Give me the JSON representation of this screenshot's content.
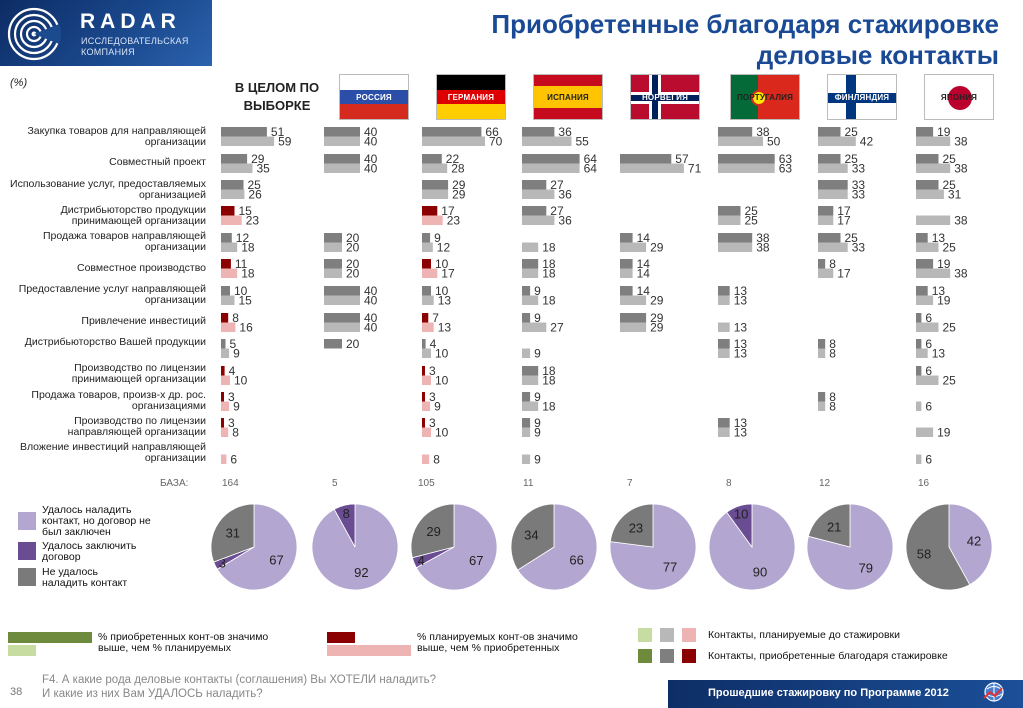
{
  "header": {
    "logo_name": "RADAR",
    "logo_sub1": "ИССЛЕДОВАТЕЛЬСКАЯ",
    "logo_sub2": "КОМПАНИЯ",
    "title_line1": "Приобретенные благодаря стажировке",
    "title_line2": "деловые контакты"
  },
  "unit_label": "(%)",
  "overall_label_line1": "В ЦЕЛОМ ПО",
  "overall_label_line2": "ВЫБОРКЕ",
  "countries": [
    {
      "label": "РОССИЯ",
      "flag": "russia"
    },
    {
      "label": "ГЕРМАНИЯ",
      "flag": "germany"
    },
    {
      "label": "ИСПАНИЯ",
      "flag": "spain"
    },
    {
      "label": "НОРВЕГИЯ",
      "flag": "norway"
    },
    {
      "label": "ПОРТУГАЛИЯ",
      "flag": "portugal"
    },
    {
      "label": "ФИНЛЯНДИЯ",
      "flag": "finland"
    },
    {
      "label": "ЯПОНИЯ",
      "flag": "japan"
    }
  ],
  "colors": {
    "acquired_default": "#7f7f7f",
    "planned_default": "#b8b8b8",
    "acquired_sig_low": "#8b0000",
    "planned_sig_low": "#eeb4b4",
    "acquired_sig_high": "#6e8b3d",
    "planned_sig_high": "#c6dca0",
    "pie_established": "#b3a6d0",
    "pie_agreement": "#6a4c93",
    "pie_failed": "#7a7a7a",
    "title": "#1a4a96"
  },
  "base_label": "БАЗА:",
  "chart_data": {
    "type": "bar",
    "orientation": "horizontal",
    "groups": [
      "В ЦЕЛОМ ПО ВЫБОРКЕ",
      "РОССИЯ",
      "ГЕРМАНИЯ",
      "ИСПАНИЯ",
      "НОРВЕГИЯ",
      "ПОРТУГАЛИЯ",
      "ФИНЛЯНДИЯ",
      "ЯПОНИЯ"
    ],
    "base": [
      164,
      5,
      105,
      11,
      7,
      8,
      12,
      16
    ],
    "categories": [
      "Закупка товаров для направляющей организации",
      "Совместный проект",
      "Использование услуг, предоставляемых организацией",
      "Дистрибьюторство продукции принимающей организации",
      "Продажа товаров направляющей организации",
      "Совместное производство",
      "Предоставление услуг направляющей организации",
      "Привлечение инвестиций",
      "Дистрибьюторство Вашей продукции",
      "Производство по лицензии принимающей организации",
      "Продажа товаров, произв-х др. рос. организациями",
      "Производство по лицензии направляющей организации",
      "Вложение инвестиций направляющей организации"
    ],
    "series": [
      {
        "name": "Контакты, приобретенные благодаря стажировке",
        "values": [
          [
            51,
            29,
            25,
            15,
            12,
            11,
            10,
            8,
            5,
            4,
            3,
            3,
            null
          ],
          [
            40,
            40,
            null,
            null,
            20,
            20,
            40,
            40,
            20,
            null,
            null,
            null,
            null
          ],
          [
            66,
            22,
            29,
            17,
            9,
            10,
            10,
            7,
            4,
            3,
            3,
            3,
            null
          ],
          [
            36,
            64,
            27,
            27,
            null,
            18,
            9,
            9,
            null,
            18,
            9,
            9,
            null
          ],
          [
            null,
            57,
            null,
            null,
            14,
            14,
            14,
            29,
            null,
            null,
            null,
            null,
            null
          ],
          [
            38,
            63,
            null,
            25,
            38,
            null,
            13,
            null,
            13,
            null,
            null,
            13,
            null
          ],
          [
            25,
            25,
            33,
            17,
            25,
            8,
            null,
            null,
            8,
            null,
            8,
            null,
            null
          ],
          [
            19,
            25,
            25,
            null,
            13,
            19,
            13,
            6,
            6,
            6,
            null,
            null,
            null
          ]
        ]
      },
      {
        "name": "Контакты, планируемые до стажировки",
        "values": [
          [
            59,
            35,
            26,
            23,
            18,
            18,
            15,
            16,
            9,
            10,
            9,
            8,
            6
          ],
          [
            40,
            40,
            null,
            null,
            20,
            20,
            40,
            40,
            null,
            null,
            null,
            null,
            null
          ],
          [
            70,
            28,
            29,
            23,
            12,
            17,
            13,
            13,
            10,
            10,
            9,
            10,
            8
          ],
          [
            55,
            64,
            36,
            36,
            18,
            18,
            18,
            27,
            9,
            18,
            18,
            9,
            9
          ],
          [
            null,
            71,
            null,
            null,
            29,
            14,
            29,
            29,
            null,
            null,
            null,
            null,
            null
          ],
          [
            50,
            63,
            null,
            25,
            38,
            null,
            13,
            13,
            13,
            null,
            null,
            13,
            null
          ],
          [
            42,
            33,
            33,
            17,
            33,
            17,
            null,
            null,
            8,
            null,
            8,
            null,
            null
          ],
          [
            38,
            38,
            31,
            38,
            25,
            38,
            19,
            25,
            13,
            25,
            6,
            19,
            6
          ]
        ]
      }
    ],
    "significance": [
      [
        "",
        "",
        "",
        "low",
        "",
        "low",
        "",
        "low",
        "",
        "low",
        "low",
        "low",
        "low"
      ],
      [
        "",
        "",
        "",
        "",
        "",
        "",
        "",
        "",
        "",
        "",
        "",
        "",
        ""
      ],
      [
        "",
        "",
        "",
        "low",
        "",
        "low",
        "",
        "low",
        "",
        "low",
        "low",
        "low",
        "low"
      ],
      [
        "",
        "",
        "",
        "",
        "",
        "",
        "",
        "",
        "",
        "",
        "",
        "",
        ""
      ],
      [
        "",
        "",
        "",
        "",
        "",
        "",
        "",
        "",
        "",
        "",
        "",
        "",
        ""
      ],
      [
        "",
        "",
        "",
        "",
        "",
        "",
        "",
        "",
        "",
        "",
        "",
        "",
        ""
      ],
      [
        "",
        "",
        "",
        "",
        "",
        "",
        "",
        "",
        "",
        "",
        "",
        "",
        ""
      ],
      [
        "",
        "",
        "",
        "",
        "",
        "",
        "",
        "",
        "",
        "",
        "",
        "",
        ""
      ]
    ],
    "pies": [
      {
        "group": "В ЦЕЛОМ ПО ВЫБОРКЕ",
        "values": [
          67,
          3,
          31
        ]
      },
      {
        "group": "РОССИЯ",
        "values": [
          92,
          8,
          0
        ]
      },
      {
        "group": "ГЕРМАНИЯ",
        "values": [
          67,
          4,
          29
        ]
      },
      {
        "group": "ИСПАНИЯ",
        "values": [
          66,
          0,
          34
        ]
      },
      {
        "group": "НОРВЕГИЯ",
        "values": [
          77,
          0,
          23
        ]
      },
      {
        "group": "ПОРТУГАЛИЯ",
        "values": [
          90,
          10,
          0
        ]
      },
      {
        "group": "ФИНЛЯНДИЯ",
        "values": [
          79,
          0,
          21
        ]
      },
      {
        "group": "ЯПОНИЯ",
        "values": [
          42,
          0,
          58
        ]
      }
    ],
    "pie_series": [
      "Удалось наладить контакт, но договор не был заключен",
      "Удалось заключить договор",
      "Не удалось наладить контакт"
    ]
  },
  "legend": {
    "pie_established": [
      "Удалось наладить",
      "контакт, но договор не",
      "был заключен"
    ],
    "pie_agreement": [
      "Удалось заключить",
      "договор"
    ],
    "pie_failed": [
      "Не удалось",
      "наладить контакт"
    ],
    "sig_high": [
      "% приобретенных конт-ов значимо",
      "выше, чем % планируемых"
    ],
    "sig_low": [
      "% планируемых конт-ов значимо",
      "выше, чем % приобретенных"
    ],
    "planned": "Контакты, планируемые до стажировки",
    "acquired": "Контакты, приобретенные благодаря стажировке"
  },
  "footer": {
    "page_number": "38",
    "question_line1": "F4. А какие рода деловые контакты (соглашения) Вы ХОТЕЛИ наладить?",
    "question_line2": "И какие из них Вам УДАЛОСЬ наладить?",
    "program": "Прошедшие стажировку по Программе 2012"
  }
}
